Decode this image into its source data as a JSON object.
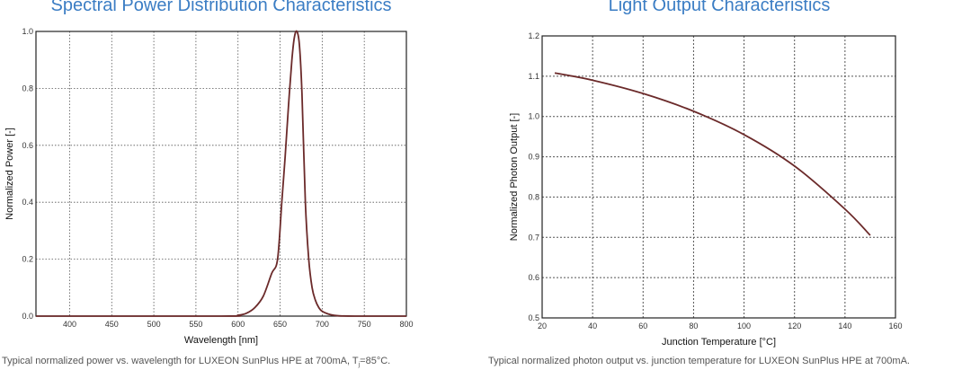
{
  "colors": {
    "title": "#3b7dc4",
    "line": "#6b2a2a",
    "grid": "#555555"
  },
  "chart_data": [
    {
      "type": "line",
      "title": "Spectral Power Distribution Characteristics",
      "xlabel": "Wavelength [nm]",
      "ylabel": "Normalized Power [-]",
      "caption": "Typical normalized power vs. wavelength for LUXEON SunPlus HPE at 700mA, T",
      "caption_sub": "j",
      "caption_end": "=85°C.",
      "xlim": [
        360,
        800
      ],
      "ylim": [
        0,
        1.0
      ],
      "xticks": [
        400,
        450,
        500,
        550,
        600,
        650,
        700,
        750,
        800
      ],
      "xtick_labels": [
        "400",
        "450",
        "500",
        "550",
        "600",
        "650",
        "700",
        "750",
        "800"
      ],
      "yticks": [
        0,
        0.2,
        0.4,
        0.6,
        0.8,
        1.0
      ],
      "ytick_labels": [
        "0.0",
        "0.2",
        "0.4",
        "0.6",
        "0.8",
        "1.0"
      ],
      "grid": true,
      "x": [
        360,
        580,
        600,
        610,
        620,
        630,
        640,
        647,
        652,
        656,
        660,
        664,
        667,
        670,
        673,
        676,
        680,
        684,
        688,
        692,
        696,
        700,
        710,
        720,
        740,
        800
      ],
      "y": [
        0,
        0,
        0.003,
        0.01,
        0.03,
        0.07,
        0.15,
        0.2,
        0.4,
        0.56,
        0.74,
        0.9,
        0.98,
        1.0,
        0.95,
        0.78,
        0.4,
        0.2,
        0.1,
        0.055,
        0.03,
        0.017,
        0.005,
        0.001,
        0,
        0
      ]
    },
    {
      "type": "line",
      "title": "Light Output Characteristics",
      "xlabel": "Junction Temperature [°C]",
      "ylabel": "Normalized Photon Output [-]",
      "caption": "Typical normalized photon output vs. junction temperature for LUXEON SunPlus HPE at 700mA.",
      "xlim": [
        20,
        160
      ],
      "ylim": [
        0.5,
        1.2
      ],
      "xticks": [
        20,
        40,
        60,
        80,
        100,
        120,
        140,
        160
      ],
      "xtick_labels": [
        "20",
        "40",
        "60",
        "80",
        "100",
        "120",
        "140",
        "160"
      ],
      "yticks": [
        0.5,
        0.6,
        0.7,
        0.8,
        0.9,
        1.0,
        1.1,
        1.2
      ],
      "ytick_labels": [
        "0.5",
        "0.6",
        "0.7",
        "0.8",
        "0.9",
        "1.0",
        "1.1",
        "1.2"
      ],
      "grid": true,
      "x": [
        25,
        40,
        60,
        80,
        100,
        120,
        140,
        150
      ],
      "y": [
        1.108,
        1.09,
        1.057,
        1.013,
        0.955,
        0.877,
        0.77,
        0.705
      ]
    }
  ]
}
